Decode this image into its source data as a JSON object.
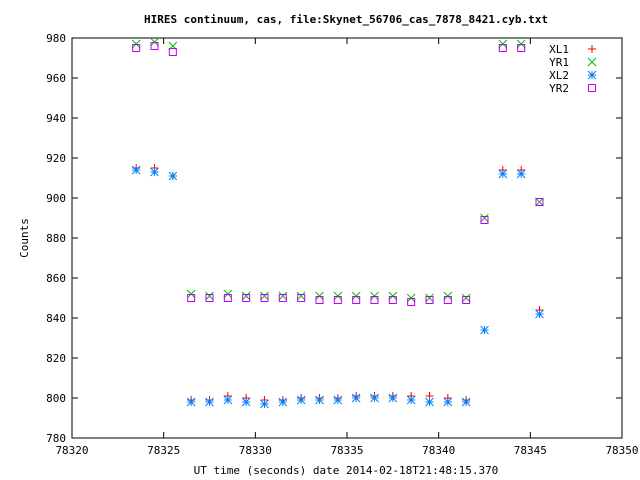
{
  "chart_data": {
    "type": "scatter",
    "title": "HIRES continuum, cas, file:Skynet_56706_cas_7878_8421.cyb.txt",
    "xlabel": "UT time (seconds) date 2014-02-18T21:48:15.370",
    "ylabel": "Counts",
    "xlim": [
      78320,
      78350
    ],
    "ylim": [
      780,
      980
    ],
    "xticks": [
      78320,
      78325,
      78330,
      78335,
      78340,
      78345,
      78350
    ],
    "yticks": [
      780,
      800,
      820,
      840,
      860,
      880,
      900,
      920,
      940,
      960,
      980
    ],
    "grid": false,
    "legend": "top-right",
    "x": [
      78323.5,
      78324.5,
      78325.5,
      78326.5,
      78327.5,
      78328.5,
      78329.5,
      78330.5,
      78331.5,
      78332.5,
      78333.5,
      78334.5,
      78335.5,
      78336.5,
      78337.5,
      78338.5,
      78339.5,
      78340.5,
      78341.5,
      78342.5,
      78343.5,
      78344.5,
      78345.5
    ],
    "series": [
      {
        "name": "XL1",
        "marker": "plus",
        "color": "#ff0000",
        "values": [
          915,
          915,
          911,
          799,
          799,
          801,
          800,
          799,
          799,
          800,
          800,
          800,
          801,
          801,
          801,
          801,
          801,
          800,
          799,
          834,
          914,
          914,
          844
        ]
      },
      {
        "name": "YR1",
        "marker": "cross",
        "color": "#00c000",
        "values": [
          977,
          978,
          976,
          852,
          851,
          852,
          851,
          851,
          851,
          851,
          851,
          851,
          851,
          851,
          851,
          850,
          850,
          851,
          850,
          890,
          977,
          977,
          898
        ]
      },
      {
        "name": "XL2",
        "marker": "star",
        "color": "#0080ff",
        "values": [
          914,
          913,
          911,
          798,
          798,
          799,
          798,
          797,
          798,
          799,
          799,
          799,
          800,
          800,
          800,
          799,
          798,
          798,
          798,
          834,
          912,
          912,
          842
        ]
      },
      {
        "name": "YR2",
        "marker": "square",
        "color": "#c000ff",
        "values": [
          975,
          976,
          973,
          850,
          850,
          850,
          850,
          850,
          850,
          850,
          849,
          849,
          849,
          849,
          849,
          848,
          849,
          849,
          849,
          889,
          975,
          975,
          898
        ]
      }
    ]
  }
}
